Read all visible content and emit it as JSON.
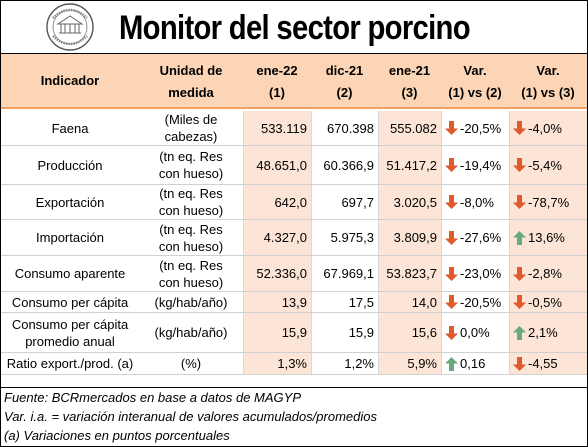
{
  "title": "Monitor del sector porcino",
  "logo_text": "BOLSA DE COMERCIO DE ROSARIO",
  "columns": [
    {
      "line1": "Indicador",
      "line2": ""
    },
    {
      "line1": "Unidad de",
      "line2": "medida"
    },
    {
      "line1": "ene-22",
      "line2": "(1)"
    },
    {
      "line1": "dic-21",
      "line2": "(2)"
    },
    {
      "line1": "ene-21",
      "line2": "(3)"
    },
    {
      "line1": "Var.",
      "line2": "(1) vs (2)"
    },
    {
      "line1": "Var.",
      "line2": "(1) vs (3)"
    }
  ],
  "rows": [
    {
      "indicator": "Faena",
      "unit": "(Miles de cabezas)",
      "v1": "533.119",
      "v2": "670.398",
      "v3": "555.082",
      "var12": {
        "dir": "down",
        "value": "-20,5%"
      },
      "var13": {
        "dir": "down",
        "value": "-4,0%"
      }
    },
    {
      "indicator": "Producción",
      "unit": "(tn eq. Res con hueso)",
      "v1": "48.651,0",
      "v2": "60.366,9",
      "v3": "51.417,2",
      "var12": {
        "dir": "down",
        "value": "-19,4%"
      },
      "var13": {
        "dir": "down",
        "value": "-5,4%"
      }
    },
    {
      "indicator": "Exportación",
      "unit": "(tn eq. Res con hueso)",
      "v1": "642,0",
      "v2": "697,7",
      "v3": "3.020,5",
      "var12": {
        "dir": "down",
        "value": "-8,0%"
      },
      "var13": {
        "dir": "down",
        "value": "-78,7%"
      }
    },
    {
      "indicator": "Importación",
      "unit": "(tn eq. Res con hueso)",
      "v1": "4.327,0",
      "v2": "5.975,3",
      "v3": "3.809,9",
      "var12": {
        "dir": "down",
        "value": "-27,6%"
      },
      "var13": {
        "dir": "up",
        "value": "13,6%"
      }
    },
    {
      "indicator": "Consumo aparente",
      "unit": "(tn eq. Res con hueso)",
      "v1": "52.336,0",
      "v2": "67.969,1",
      "v3": "53.823,7",
      "var12": {
        "dir": "down",
        "value": "-23,0%"
      },
      "var13": {
        "dir": "down",
        "value": "-2,8%"
      }
    },
    {
      "indicator": "Consumo per cápita",
      "unit": "(kg/hab/año)",
      "v1": "13,9",
      "v2": "17,5",
      "v3": "14,0",
      "var12": {
        "dir": "down",
        "value": "-20,5%"
      },
      "var13": {
        "dir": "down",
        "value": "-0,5%"
      }
    },
    {
      "indicator": "Consumo per cápita promedio anual",
      "unit": "(kg/hab/año)",
      "v1": "15,9",
      "v2": "15,9",
      "v3": "15,6",
      "var12": {
        "dir": "down",
        "value": "0,0%"
      },
      "var13": {
        "dir": "up",
        "value": "2,1%"
      }
    },
    {
      "indicator": "Ratio export./prod. (a)",
      "unit": "(%)",
      "v1": "1,3%",
      "v2": "1,2%",
      "v3": "5,9%",
      "var12": {
        "dir": "up",
        "value": "0,16"
      },
      "var13": {
        "dir": "down",
        "value": "-4,55"
      }
    }
  ],
  "footer": [
    "Fuente: BCRmercados en base a datos de MAGYP",
    "Var. i.a. = variación interanual de valores acumulados/promedios",
    "(a) Variaciones en puntos porcentuales"
  ],
  "colors": {
    "header_bg": "#fbd5b5",
    "highlight_bg": "#fce4d6",
    "arrow_down": "#e05a2a",
    "arrow_up": "#6aa87e"
  }
}
